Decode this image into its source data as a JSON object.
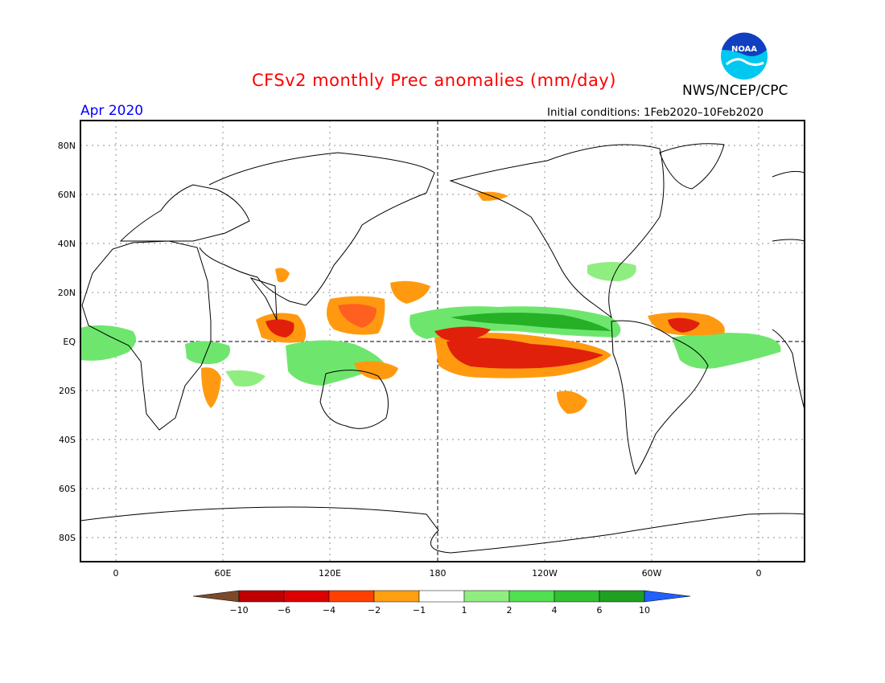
{
  "header": {
    "title": "CFSv2 monthly Prec anomalies (mm/day)",
    "month": "Apr 2020",
    "initial_conditions": "Initial conditions: 1Feb2020–10Feb2020",
    "agency": "NWS/NCEP/CPC",
    "logo_text": "NOAA"
  },
  "axes": {
    "lat_labels": [
      "80N",
      "60N",
      "40N",
      "20N",
      "EQ",
      "20S",
      "40S",
      "60S",
      "80S"
    ],
    "lon_labels": [
      "0",
      "60E",
      "120E",
      "180",
      "120W",
      "60W",
      "0"
    ]
  },
  "colorbar": {
    "labels": [
      "−10",
      "−6",
      "−4",
      "−2",
      "−1",
      "1",
      "2",
      "4",
      "6",
      "10"
    ],
    "colors": [
      "#7a4a2a",
      "#c00000",
      "#dd0000",
      "#ff4000",
      "#ffa010",
      "#ffffff",
      "#90ee80",
      "#50e050",
      "#30c030",
      "#20a020",
      "#2060ff"
    ]
  },
  "colors": {
    "dry_strong": "#e0200a",
    "dry": "#ff9a10",
    "wet": "#6ee66e",
    "wet_strong": "#25b025"
  }
}
